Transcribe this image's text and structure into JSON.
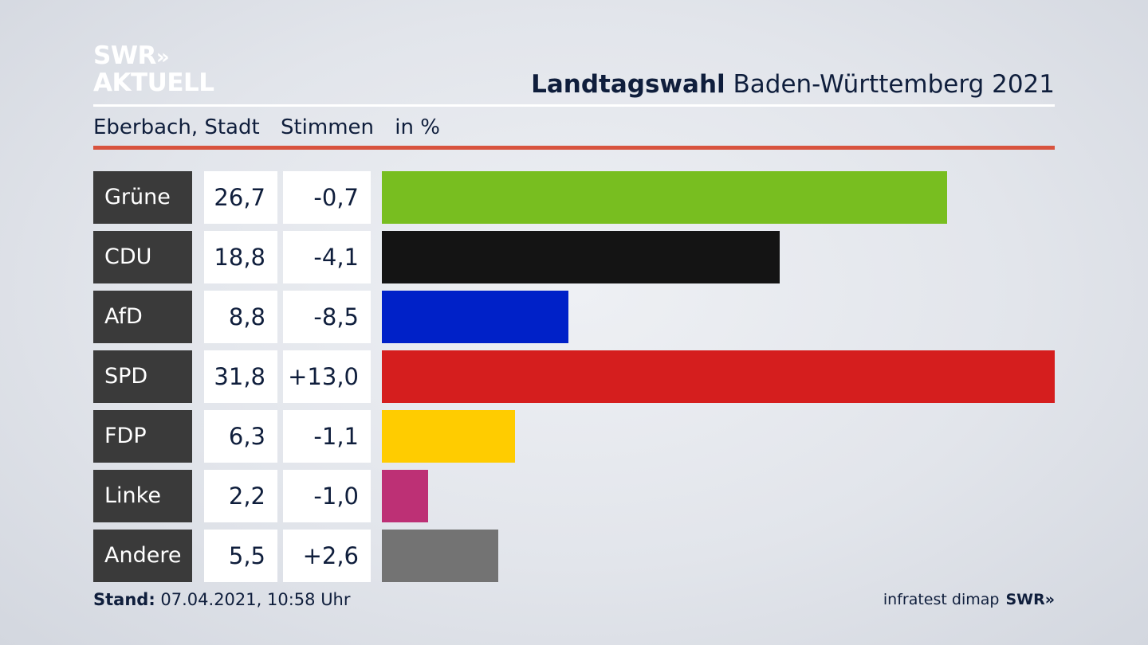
{
  "logo": {
    "line1": "SWR",
    "chevrons": "»",
    "line2": "AKTUELL"
  },
  "header": {
    "title_bold": "Landtagswahl",
    "title_rest": "Baden-Württemberg 2021"
  },
  "subheader": {
    "place": "Eberbach, Stadt",
    "metric": "Stimmen",
    "unit": "in %"
  },
  "chart_data": {
    "type": "bar",
    "orientation": "horizontal",
    "categories": [
      "Grüne",
      "CDU",
      "AfD",
      "SPD",
      "FDP",
      "Linke",
      "Andere"
    ],
    "values": [
      26.7,
      18.8,
      8.8,
      31.8,
      6.3,
      2.2,
      5.5
    ],
    "value_labels": [
      "26,7",
      "18,8",
      "8,8",
      "31,8",
      "6,3",
      "2,2",
      "5,5"
    ],
    "differences": [
      -0.7,
      -4.1,
      -8.5,
      13.0,
      -1.1,
      -1.0,
      2.6
    ],
    "difference_labels": [
      "-0,7",
      "-4,1",
      "-8,5",
      "+13,0",
      "-1,1",
      "-1,0",
      "+2,6"
    ],
    "colors": [
      "#78be20",
      "#141414",
      "#0021c8",
      "#d51e1e",
      "#ffcc00",
      "#bd3075",
      "#737373"
    ],
    "xlim": [
      0,
      31.8
    ],
    "grid": false,
    "legend": "none"
  },
  "footer": {
    "stand_label": "Stand:",
    "stand_value": "07.04.2021, 10:58 Uhr",
    "source": "infratest dimap",
    "brand": "SWR",
    "brand_chevrons": "»"
  }
}
